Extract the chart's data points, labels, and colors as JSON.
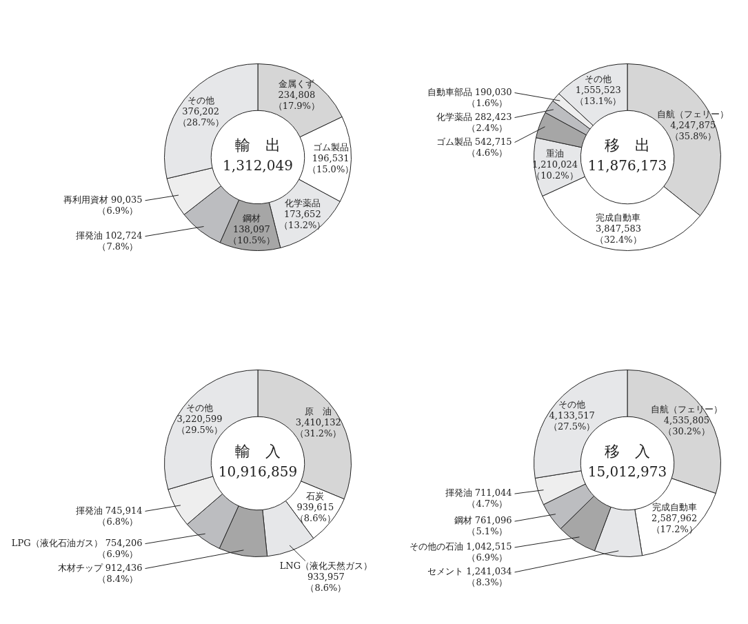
{
  "chart_data": [
    {
      "type": "donut",
      "title": "輸　出",
      "subtitle": "1,312,049",
      "categories": [
        "金属くず",
        "ゴム製品",
        "化学薬品",
        "鋼材",
        "揮発油",
        "再利用資材",
        "その他"
      ],
      "values": [
        234808,
        196531,
        173652,
        138097,
        102724,
        90035,
        376202
      ],
      "colors": [
        "#d6d6d6",
        "#ffffff",
        "#e6e7e9",
        "#a6a6a6",
        "#bcbdc0",
        "#eeeeee",
        "#e6e7e9"
      ],
      "value_labels": [
        "234,808\n（17.9%）",
        "196,531\n（15.0%）",
        "173,652\n（13.2%）",
        "138,097\n（10.5%）",
        "102,724\n（7.8%）",
        "90,035\n（6.9%）",
        "376,202\n（28.7%）"
      ]
    },
    {
      "type": "donut",
      "title": "移　出",
      "subtitle": "11,876,173",
      "categories": [
        "自航（フェリー）",
        "完成自動車",
        "重油",
        "ゴム製品",
        "化学薬品",
        "自動車部品",
        "その他"
      ],
      "values": [
        4247875,
        3847583,
        1210024,
        542715,
        282423,
        190030,
        1555523
      ],
      "colors": [
        "#d6d6d6",
        "#ffffff",
        "#e6e7e9",
        "#a6a6a6",
        "#bcbdc0",
        "#eeeeee",
        "#e6e7e9"
      ],
      "value_labels": [
        "4,247,875\n（35.8%）",
        "3,847,583\n（32.4%）",
        "1,210,024\n（10.2%）",
        "542,715\n（4.6%）",
        "282,423\n（2.4%）",
        "190,030\n（1.6%）",
        "1,555,523\n（13.1%）"
      ]
    },
    {
      "type": "donut",
      "title": "輸　入",
      "subtitle": "10,916,859",
      "categories": [
        "原　油",
        "石炭",
        "LNG（液化天然ガス）",
        "木材チップ",
        "LPG（液化石油ガス）",
        "揮発油",
        "その他"
      ],
      "values": [
        3410132,
        939615,
        933957,
        912436,
        754206,
        745914,
        3220599
      ],
      "colors": [
        "#d6d6d6",
        "#ffffff",
        "#e6e7e9",
        "#a6a6a6",
        "#bcbdc0",
        "#eeeeee",
        "#e6e7e9"
      ],
      "value_labels": [
        "3,410,132\n（31.2%）",
        "939,615\n（8.6%）",
        "933,957\n（8.6%）",
        "912,436\n（8.4%）",
        "754,206\n（6.9%）",
        "745,914\n（6.8%）",
        "3,220,599\n（29.5%）"
      ]
    },
    {
      "type": "donut",
      "title": "移　入",
      "subtitle": "15,012,973",
      "categories": [
        "自航（フェリー）",
        "完成自動車",
        "セメント",
        "その他の石油",
        "鋼材",
        "揮発油",
        "その他"
      ],
      "values": [
        4535805,
        2587962,
        1241034,
        1042515,
        761096,
        711044,
        4133517
      ],
      "colors": [
        "#d6d6d6",
        "#ffffff",
        "#e6e7e9",
        "#a6a6a6",
        "#bcbdc0",
        "#eeeeee",
        "#e6e7e9"
      ],
      "value_labels": [
        "4,535,805\n（30.2%）",
        "2,587,962\n（17.2%）",
        "1,241,034\n（8.3%）",
        "1,042,515\n（6.9%）",
        "761,096\n（5.1%）",
        "711,044\n（4.7%）",
        "4,133,517\n（27.5%）"
      ]
    }
  ]
}
